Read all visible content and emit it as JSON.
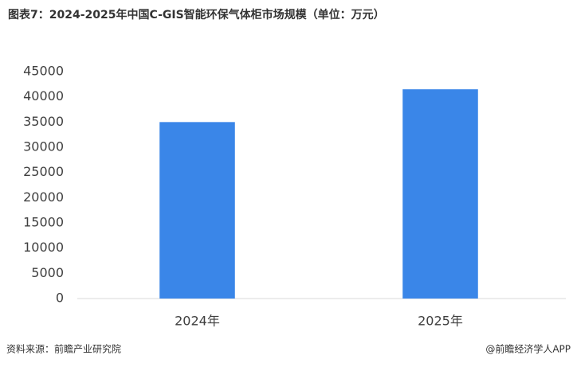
{
  "chart_data": {
    "type": "bar",
    "title": "图表7：2024-2025年中国C-GIS智能环保气体柜市场规模（单位：万元）",
    "categories": [
      "2024年",
      "2025年"
    ],
    "values": [
      35000,
      41500
    ],
    "color": "#3a86e8",
    "ylim": [
      0,
      45000
    ],
    "yticks": [
      0,
      5000,
      10000,
      15000,
      20000,
      25000,
      30000,
      35000,
      40000,
      45000
    ],
    "grid": false,
    "source": "资料来源：前瞻产业研究院",
    "credit": "@前瞻经济学人APP"
  }
}
